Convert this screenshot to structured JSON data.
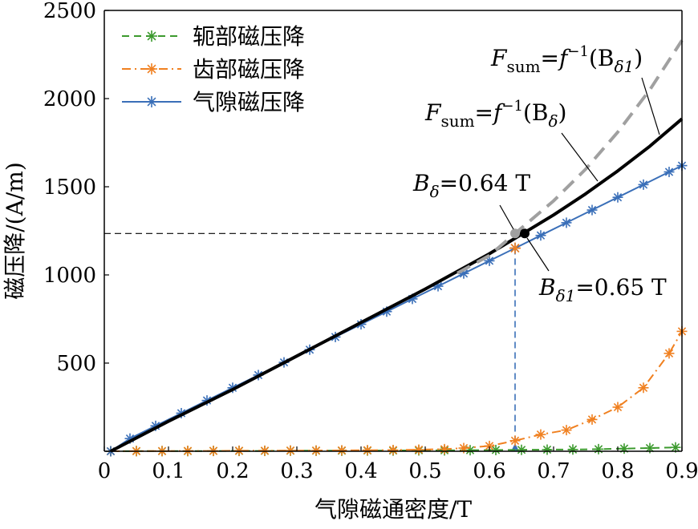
{
  "chart_data": {
    "type": "line",
    "xlabel": "气隙磁通密度/T",
    "ylabel": "磁压降/(A/m)",
    "xlim": [
      0,
      0.9
    ],
    "ylim": [
      0,
      2500
    ],
    "xticks": [
      "0",
      "0.1",
      "0.2",
      "0.3",
      "0.4",
      "0.5",
      "0.6",
      "0.7",
      "0.8",
      "0.9"
    ],
    "yticks": [
      "500",
      "1000",
      "1500",
      "2000",
      "2500"
    ],
    "legend_position": "top-left",
    "grid": false,
    "series": [
      {
        "name": "轭部磁压降",
        "color": "#3c9a2e",
        "style": "dashed",
        "marker": "star",
        "x": [
          0.01,
          0.05,
          0.09,
          0.13,
          0.17,
          0.21,
          0.25,
          0.29,
          0.33,
          0.37,
          0.41,
          0.45,
          0.49,
          0.53,
          0.57,
          0.61,
          0.65,
          0.69,
          0.73,
          0.77,
          0.81,
          0.85,
          0.89
        ],
        "y": [
          0,
          1,
          1,
          1,
          2,
          2,
          2,
          3,
          3,
          3,
          4,
          4,
          5,
          5,
          6,
          7,
          8,
          9,
          10,
          12,
          15,
          18,
          22
        ]
      },
      {
        "name": "齿部磁压降",
        "color": "#f08020",
        "style": "dashdot",
        "marker": "star",
        "x": [
          0.01,
          0.05,
          0.09,
          0.13,
          0.17,
          0.21,
          0.25,
          0.29,
          0.33,
          0.37,
          0.41,
          0.45,
          0.49,
          0.53,
          0.56,
          0.6,
          0.64,
          0.68,
          0.72,
          0.76,
          0.8,
          0.84,
          0.88,
          0.9
        ],
        "y": [
          0,
          1,
          1,
          2,
          2,
          3,
          3,
          4,
          4,
          5,
          6,
          7,
          9,
          12,
          18,
          30,
          60,
          95,
          120,
          180,
          250,
          360,
          555,
          680
        ]
      },
      {
        "name": "气隙磁压降",
        "color": "#3a6fb8",
        "style": "solid",
        "marker": "star",
        "x": [
          0.01,
          0.04,
          0.08,
          0.12,
          0.16,
          0.2,
          0.24,
          0.28,
          0.32,
          0.36,
          0.4,
          0.44,
          0.48,
          0.52,
          0.56,
          0.6,
          0.64,
          0.68,
          0.72,
          0.76,
          0.8,
          0.84,
          0.88,
          0.9
        ],
        "y": [
          0,
          72,
          144,
          216,
          288,
          360,
          432,
          504,
          576,
          648,
          720,
          792,
          864,
          936,
          1008,
          1080,
          1152,
          1224,
          1296,
          1368,
          1440,
          1512,
          1584,
          1620
        ]
      },
      {
        "name": "F_sum = f^-1(B_δ1)",
        "color": "#000000",
        "style": "solid-thick",
        "marker": "none",
        "x": [
          0.01,
          0.1,
          0.2,
          0.3,
          0.4,
          0.5,
          0.55,
          0.6,
          0.65,
          0.7,
          0.75,
          0.8,
          0.85,
          0.9
        ],
        "y": [
          0,
          170,
          350,
          540,
          730,
          920,
          1020,
          1120,
          1230,
          1340,
          1460,
          1590,
          1730,
          1885
        ]
      },
      {
        "name": "F_sum = f^-1(B_δ)",
        "color": "#a0a0a0",
        "style": "dashed-thick",
        "marker": "none",
        "x": [
          0.55,
          0.6,
          0.64,
          0.7,
          0.75,
          0.8,
          0.85,
          0.9
        ],
        "y": [
          1010,
          1110,
          1235,
          1420,
          1600,
          1810,
          2050,
          2330
        ]
      }
    ],
    "reference_lines": {
      "horizontal_y": 1235,
      "vertical_x": 0.64,
      "vertical_top_y": 1152
    },
    "points": [
      {
        "x": 0.64,
        "y": 1235,
        "color": "#a0a0a0"
      },
      {
        "x": 0.655,
        "y": 1235,
        "color": "#000000"
      }
    ],
    "annotations": {
      "curve1": {
        "main": "F",
        "sub": "sum",
        "eq": "=",
        "func": "f",
        "sup": "−1",
        "arg_open": "(B",
        "arg_sub": "δ1",
        "arg_close": ")"
      },
      "curve2": {
        "main": "F",
        "sub": "sum",
        "eq": "=",
        "func": "f",
        "sup": "−1",
        "arg_open": "(B",
        "arg_sub": "δ",
        "arg_close": ")"
      },
      "bdelta": {
        "main": "B",
        "sub": "δ",
        "value": "=0.64 T"
      },
      "bdelta1": {
        "main": "B",
        "sub": "δ1",
        "value": "=0.65 T"
      }
    }
  }
}
